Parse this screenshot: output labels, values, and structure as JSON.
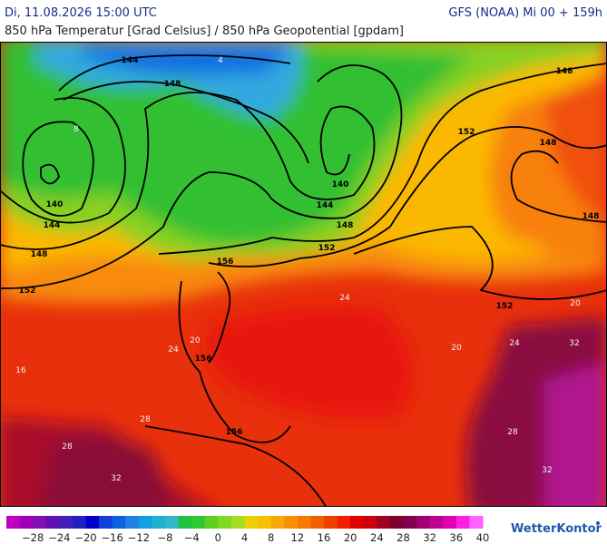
{
  "header": {
    "datetime": "Di, 11.08.2026 15:00 UTC",
    "model": "GFS (NOAA) Mi 00 + 159h",
    "subtitle": "850 hPa Temperatur [Grad Celsius] / 850 hPa Geopotential [gpdam]"
  },
  "map": {
    "geopotential_labels": [
      "144",
      "148",
      "148",
      "152",
      "148",
      "140",
      "144",
      "148",
      "152",
      "140",
      "144",
      "148",
      "152",
      "156",
      "156",
      "156",
      "152",
      "148"
    ],
    "temperature_labels": [
      "4",
      "8",
      "16",
      "20",
      "24",
      "24",
      "20",
      "28",
      "28",
      "32",
      "32",
      "28",
      "24",
      "32",
      "20"
    ]
  },
  "legend": {
    "labels": [
      "−28",
      "−24",
      "−20",
      "−16",
      "−12",
      "−8",
      "−4",
      "0",
      "4",
      "8",
      "12",
      "16",
      "20",
      "24",
      "28",
      "32",
      "36",
      "40"
    ],
    "colors": [
      "#c000c0",
      "#a000b8",
      "#8010b0",
      "#6010b0",
      "#4020b8",
      "#2020c0",
      "#0000c8",
      "#1040d8",
      "#1060e0",
      "#2080e8",
      "#10a0e0",
      "#20b0d0",
      "#30b8c8",
      "#20c040",
      "#30c830",
      "#60d020",
      "#80d820",
      "#a0e020",
      "#f0d000",
      "#f8c000",
      "#f8a800",
      "#f89000",
      "#f87800",
      "#f06000",
      "#f04000",
      "#f02000",
      "#e00000",
      "#c80010",
      "#a00020",
      "#800030",
      "#800050",
      "#a00070",
      "#c00090",
      "#e000b0",
      "#ff20e0",
      "#ff60ff"
    ]
  },
  "brand": "WetterKontor"
}
